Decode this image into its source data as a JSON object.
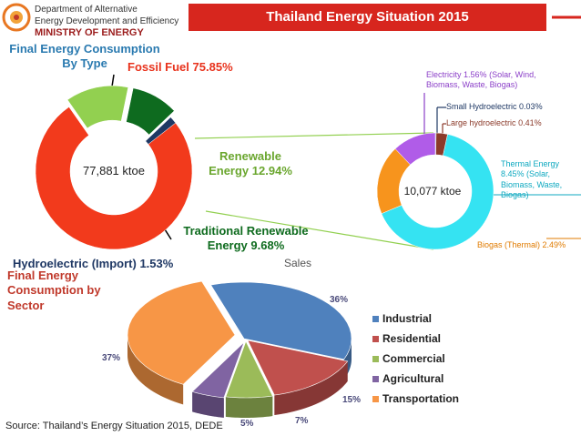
{
  "header": {
    "org_lines": [
      "Department of Alternative",
      "Energy Development and Efficiency"
    ],
    "ministry": "MINISTRY OF ENERGY",
    "title": "Thailand Energy Situation 2015"
  },
  "source": "Source: Thailand’s Energy Situation 2015, DEDE",
  "chart_data": [
    {
      "type": "donut",
      "title": "Final Energy Consumption By Type",
      "center_label": "77,881 ktoe",
      "categories": [
        "Fossil Fuel",
        "Renewable Energy",
        "Traditional Renewable Energy",
        "Hydroelectric (Import)"
      ],
      "values": [
        75.85,
        12.94,
        9.68,
        1.53
      ],
      "value_labels": [
        "75.85%",
        "12.94%",
        "9.68%",
        "1.53%"
      ],
      "colors": [
        "#f23a1c",
        "#92d050",
        "#0e6b1f",
        "#1f3864"
      ]
    },
    {
      "type": "donut",
      "center_label": "10,077 ktoe",
      "categories": [
        "Small Hydroelectric",
        "Large hydroelectric",
        "Thermal Energy",
        "Biogas (Thermal)",
        "Electricity"
      ],
      "values": [
        0.03,
        0.41,
        8.45,
        2.49,
        1.56
      ],
      "value_labels": [
        "0.03%",
        "0.41%",
        "8.45%",
        "2.49%",
        "1.56%"
      ],
      "notes": [
        "(Solar, Biomass, Waste, Biogas)",
        "(Solar, Wind, Biomass, Waste, Biogas)"
      ],
      "colors": [
        "#1f4e9c",
        "#8b3a2a",
        "#35e3f2",
        "#f7941d",
        "#b05ce8"
      ]
    },
    {
      "type": "pie3d",
      "title": "Final Energy Consumption by Sector",
      "annotation": "Sales",
      "categories": [
        "Industrial",
        "Residential",
        "Commercial",
        "Agricultural",
        "Transportation"
      ],
      "values": [
        36,
        15,
        7,
        5,
        37
      ],
      "value_labels": [
        "36%",
        "15%",
        "7%",
        "5%",
        "37%"
      ],
      "colors": [
        "#4f81bd",
        "#c0504d",
        "#9bbb59",
        "#8064a2",
        "#f79646"
      ],
      "legend": "right"
    }
  ]
}
